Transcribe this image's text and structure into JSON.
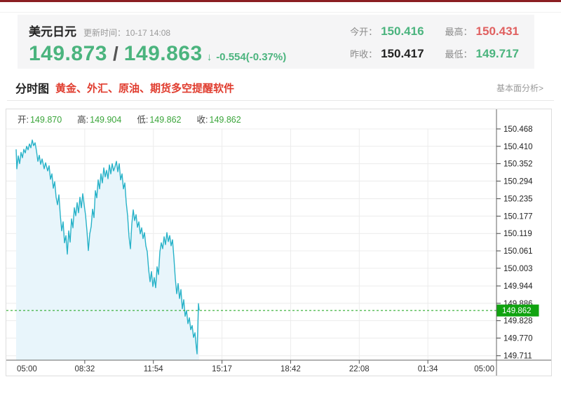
{
  "colors": {
    "accent_bar": "#8b1e22",
    "down_green": "#4bb47e",
    "up_red": "#e06060",
    "ad_red": "#e03c2e",
    "chart_green": "#3aa53a"
  },
  "header": {
    "symbol": "美元日元",
    "update_label": "更新时间：",
    "update_time": "10-17 14:08",
    "bid": "149.873",
    "separator": "/",
    "ask": "149.863",
    "arrow": "↓",
    "change": "-0.554(-0.37%)",
    "stats": [
      {
        "label": "今开：",
        "value": "150.416"
      },
      {
        "label": "最高：",
        "value": "150.431"
      },
      {
        "label": "昨收：",
        "value": "150.417"
      },
      {
        "label": "最低：",
        "value": "149.717"
      }
    ]
  },
  "tabs": {
    "active": "分时图",
    "ad_text": "黄金、外汇、原油、期货多空提醒软件",
    "right_link": "基本面分析>"
  },
  "chart_header": {
    "open_label": "开:",
    "open": "149.870",
    "high_label": "高:",
    "high": "149.904",
    "low_label": "低:",
    "low": "149.862",
    "close_label": "收:",
    "close": "149.862"
  },
  "chart_data": {
    "type": "area",
    "title": "美元日元分时图",
    "x_ticks": [
      "05:00",
      "08:32",
      "11:54",
      "15:17",
      "18:42",
      "22:08",
      "01:34",
      "05:00"
    ],
    "y_ticks": [
      150.468,
      150.41,
      150.352,
      150.294,
      150.235,
      150.177,
      150.119,
      150.061,
      150.003,
      149.944,
      149.886,
      149.828,
      149.77,
      149.711
    ],
    "ylim": [
      149.711,
      150.468
    ],
    "current_price": 149.862,
    "line_color": "#27b2c8",
    "fill_color": "#e8f5fb",
    "price_line_color": "#14a114",
    "badge_color": "#10a310",
    "grid_color": "#ececec",
    "axis_color": "#666666",
    "label_color": "#333333",
    "points": [
      [
        0.0,
        150.4
      ],
      [
        0.0015,
        150.335
      ],
      [
        0.0044,
        150.378
      ],
      [
        0.0073,
        150.352
      ],
      [
        0.0102,
        150.39
      ],
      [
        0.0131,
        150.372
      ],
      [
        0.0161,
        150.4
      ],
      [
        0.019,
        150.388
      ],
      [
        0.0219,
        150.41
      ],
      [
        0.0248,
        150.398
      ],
      [
        0.0277,
        150.418
      ],
      [
        0.0307,
        150.405
      ],
      [
        0.0336,
        150.431
      ],
      [
        0.0365,
        150.412
      ],
      [
        0.0394,
        150.422
      ],
      [
        0.0423,
        150.395
      ],
      [
        0.0453,
        150.36
      ],
      [
        0.0482,
        150.38
      ],
      [
        0.0511,
        150.35
      ],
      [
        0.054,
        150.368
      ],
      [
        0.0584,
        150.335
      ],
      [
        0.0613,
        150.355
      ],
      [
        0.0657,
        150.328
      ],
      [
        0.0686,
        150.345
      ],
      [
        0.0715,
        150.3
      ],
      [
        0.0745,
        150.318
      ],
      [
        0.0774,
        150.27
      ],
      [
        0.0803,
        150.292
      ],
      [
        0.0832,
        150.24
      ],
      [
        0.0861,
        150.215
      ],
      [
        0.0891,
        150.248
      ],
      [
        0.092,
        150.18
      ],
      [
        0.0949,
        150.128
      ],
      [
        0.0978,
        150.158
      ],
      [
        0.1007,
        150.088
      ],
      [
        0.1036,
        150.112
      ],
      [
        0.1066,
        150.05
      ],
      [
        0.1095,
        150.128
      ],
      [
        0.1124,
        150.09
      ],
      [
        0.1153,
        150.168
      ],
      [
        0.1182,
        150.138
      ],
      [
        0.1212,
        150.205
      ],
      [
        0.1241,
        150.178
      ],
      [
        0.127,
        150.222
      ],
      [
        0.1299,
        150.188
      ],
      [
        0.1328,
        150.24
      ],
      [
        0.1358,
        150.205
      ],
      [
        0.1387,
        150.252
      ],
      [
        0.1416,
        150.215
      ],
      [
        0.1445,
        150.18
      ],
      [
        0.1474,
        150.128
      ],
      [
        0.1504,
        150.062
      ],
      [
        0.1533,
        150.118
      ],
      [
        0.1562,
        150.142
      ],
      [
        0.1591,
        150.2
      ],
      [
        0.162,
        150.172
      ],
      [
        0.165,
        150.262
      ],
      [
        0.1679,
        150.238
      ],
      [
        0.1708,
        150.298
      ],
      [
        0.1737,
        150.268
      ],
      [
        0.1766,
        150.318
      ],
      [
        0.1796,
        150.288
      ],
      [
        0.1825,
        150.338
      ],
      [
        0.1854,
        150.308
      ],
      [
        0.1883,
        150.33
      ],
      [
        0.1912,
        150.302
      ],
      [
        0.1942,
        150.348
      ],
      [
        0.1971,
        150.318
      ],
      [
        0.2,
        150.352
      ],
      [
        0.2029,
        150.328
      ],
      [
        0.2058,
        150.342
      ],
      [
        0.2088,
        150.36
      ],
      [
        0.2117,
        150.325
      ],
      [
        0.2146,
        150.352
      ],
      [
        0.2175,
        150.298
      ],
      [
        0.2204,
        150.318
      ],
      [
        0.2234,
        150.268
      ],
      [
        0.2263,
        150.288
      ],
      [
        0.2292,
        150.222
      ],
      [
        0.2321,
        150.178
      ],
      [
        0.235,
        150.108
      ],
      [
        0.238,
        150.068
      ],
      [
        0.2409,
        150.152
      ],
      [
        0.2438,
        150.198
      ],
      [
        0.2467,
        150.162
      ],
      [
        0.2496,
        150.182
      ],
      [
        0.2526,
        150.14
      ],
      [
        0.2555,
        150.158
      ],
      [
        0.2584,
        150.118
      ],
      [
        0.2613,
        150.138
      ],
      [
        0.2642,
        150.102
      ],
      [
        0.2672,
        150.122
      ],
      [
        0.2701,
        150.078
      ],
      [
        0.273,
        150.058
      ],
      [
        0.2759,
        149.998
      ],
      [
        0.2788,
        149.958
      ],
      [
        0.2818,
        149.992
      ],
      [
        0.2847,
        149.942
      ],
      [
        0.2876,
        149.972
      ],
      [
        0.2905,
        149.938
      ],
      [
        0.2934,
        150.008
      ],
      [
        0.2964,
        149.982
      ],
      [
        0.2993,
        150.058
      ],
      [
        0.3022,
        150.088
      ],
      [
        0.3051,
        150.068
      ],
      [
        0.308,
        150.108
      ],
      [
        0.3109,
        150.082
      ],
      [
        0.3139,
        150.122
      ],
      [
        0.3168,
        150.092
      ],
      [
        0.3197,
        150.112
      ],
      [
        0.3226,
        150.078
      ],
      [
        0.3255,
        150.098
      ],
      [
        0.3285,
        150.038
      ],
      [
        0.3314,
        149.968
      ],
      [
        0.3343,
        149.918
      ],
      [
        0.3372,
        149.952
      ],
      [
        0.3401,
        149.902
      ],
      [
        0.3431,
        149.932
      ],
      [
        0.346,
        149.868
      ],
      [
        0.3489,
        149.898
      ],
      [
        0.3518,
        149.843
      ],
      [
        0.3547,
        149.862
      ],
      [
        0.3577,
        149.818
      ],
      [
        0.3606,
        149.838
      ],
      [
        0.3635,
        149.798
      ],
      [
        0.3664,
        149.812
      ],
      [
        0.3693,
        149.772
      ],
      [
        0.3723,
        149.788
      ],
      [
        0.3752,
        149.738
      ],
      [
        0.3766,
        149.717
      ],
      [
        0.3796,
        149.885
      ],
      [
        0.381,
        149.862
      ]
    ]
  }
}
